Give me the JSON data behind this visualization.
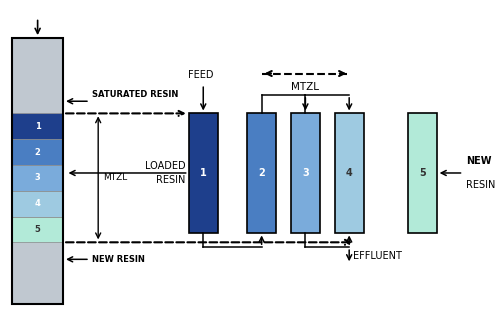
{
  "bg_color": "#ffffff",
  "fig_width": 5.0,
  "fig_height": 3.27,
  "dpi": 100,
  "column_colors": [
    "#1e3f8c",
    "#4a7ec2",
    "#7aabdb",
    "#9ecae1",
    "#b2ead8"
  ],
  "left_box_color": "#c0c8d0",
  "left_segments": [
    "#1e3f8c",
    "#4a7ec2",
    "#7aabdb",
    "#9ecae1",
    "#b2ead8"
  ],
  "text_saturated": "SATURATED RESIN",
  "text_new_resin": "NEW RESIN",
  "text_feed": "FEED",
  "text_loaded": "LOADED",
  "text_resin_label": "RESIN",
  "text_effluent": "EFFLUENT",
  "text_mtzl_top": "MTZL",
  "text_mtzl_left": "MTZL",
  "text_new_right": "NEW",
  "text_resin_right": "RESIN"
}
